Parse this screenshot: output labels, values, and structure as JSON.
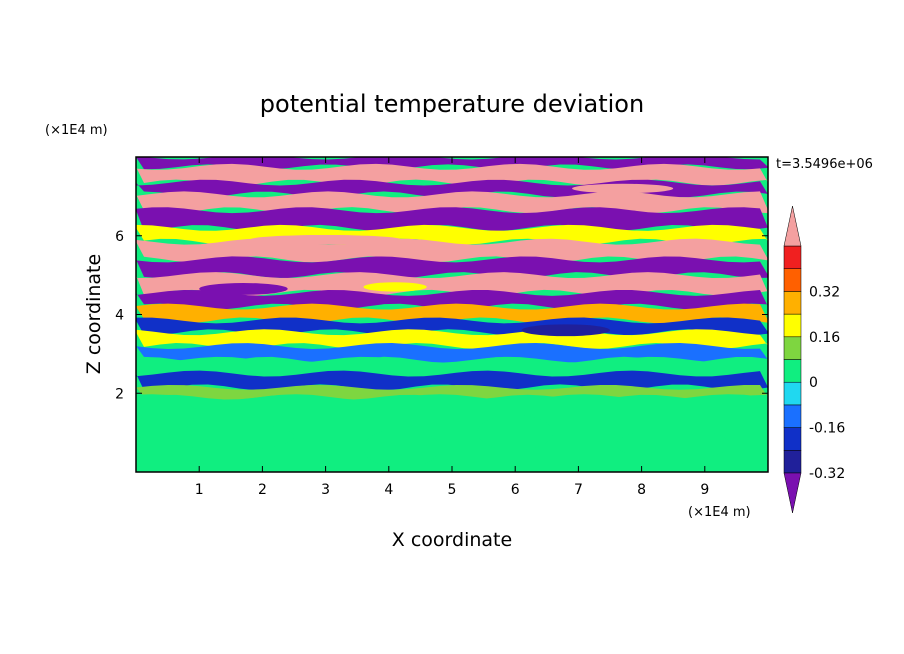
{
  "chart_data": {
    "type": "heatmap",
    "title": "potential temperature deviation",
    "xlabel": "X coordinate",
    "ylabel": "Z coordinate",
    "x_unit": "(×1E4 m)",
    "y_unit": "(×1E4 m)",
    "time_label": "t=3.5496e+06",
    "xlim": [
      0,
      10
    ],
    "ylim": [
      0,
      8
    ],
    "x_ticks": [
      "1",
      "2",
      "3",
      "4",
      "5",
      "6",
      "7",
      "8",
      "9"
    ],
    "y_ticks": [
      "2",
      "4",
      "6"
    ],
    "colorbar": {
      "labels": [
        "0.32",
        "0.16",
        "0",
        "-0.16",
        "-0.32"
      ],
      "levels": [
        -0.4,
        -0.32,
        -0.24,
        -0.16,
        -0.08,
        0,
        0.08,
        0.16,
        0.24,
        0.32,
        0.4
      ],
      "colors": [
        "#7a10b0",
        "#20209a",
        "#1030c8",
        "#1a70ff",
        "#20d8f0",
        "#10ee80",
        "#7ed640",
        "#ffff00",
        "#ffb000",
        "#ff6000",
        "#f02020",
        "#f4a0a0"
      ],
      "overflow_high_color": "#f4a0a0",
      "overflow_low_color": "#7a10b0"
    },
    "bands": [
      {
        "z_from": 7.75,
        "z_to": 8.0,
        "value": -0.45
      },
      {
        "z_from": 7.35,
        "z_to": 7.75,
        "value": 0.45
      },
      {
        "z_from": 7.05,
        "z_to": 7.35,
        "value": -0.45
      },
      {
        "z_from": 6.65,
        "z_to": 7.05,
        "value": 0.45
      },
      {
        "z_from": 6.2,
        "z_to": 6.65,
        "value": -0.45
      },
      {
        "z_from": 5.85,
        "z_to": 6.2,
        "value": 0.2
      },
      {
        "z_from": 5.4,
        "z_to": 5.85,
        "value": 0.45
      },
      {
        "z_from": 5.0,
        "z_to": 5.4,
        "value": -0.45
      },
      {
        "z_from": 4.55,
        "z_to": 5.0,
        "value": 0.45
      },
      {
        "z_from": 4.2,
        "z_to": 4.55,
        "value": -0.45
      },
      {
        "z_from": 3.85,
        "z_to": 4.2,
        "value": 0.3
      },
      {
        "z_from": 3.55,
        "z_to": 3.85,
        "value": -0.2
      },
      {
        "z_from": 3.2,
        "z_to": 3.55,
        "value": 0.2
      },
      {
        "z_from": 2.85,
        "z_to": 3.2,
        "value": -0.1
      },
      {
        "z_from": 2.5,
        "z_to": 2.85,
        "value": 0.05
      },
      {
        "z_from": 2.15,
        "z_to": 2.5,
        "value": -0.2
      },
      {
        "z_from": 1.9,
        "z_to": 2.15,
        "value": 0.1
      },
      {
        "z_from": 0.0,
        "z_to": 1.9,
        "value": 0.02
      }
    ],
    "patches": [
      {
        "x": 1.5,
        "z": 0.9,
        "rx": 1.0,
        "rz": 0.35,
        "value": 0.06
      },
      {
        "x": 4.2,
        "z": 0.6,
        "rx": 0.6,
        "rz": 0.5,
        "value": 0.06
      },
      {
        "x": 6.0,
        "z": 1.0,
        "rx": 0.6,
        "rz": 0.45,
        "value": 0.06
      },
      {
        "x": 8.5,
        "z": 0.7,
        "rx": 0.9,
        "rz": 0.4,
        "value": 0.06
      },
      {
        "x": 0.5,
        "z": 1.5,
        "rx": 0.5,
        "rz": 0.25,
        "value": 0.06
      },
      {
        "x": 1.7,
        "z": 4.65,
        "rx": 0.7,
        "rz": 0.15,
        "value": -0.45
      },
      {
        "x": 4.1,
        "z": 4.7,
        "rx": 0.5,
        "rz": 0.12,
        "value": 0.2
      },
      {
        "x": 3.0,
        "z": 5.9,
        "rx": 1.2,
        "rz": 0.12,
        "value": 0.4
      },
      {
        "x": 6.8,
        "z": 3.6,
        "rx": 0.7,
        "rz": 0.15,
        "value": -0.3
      },
      {
        "x": 7.7,
        "z": 7.2,
        "rx": 0.8,
        "rz": 0.12,
        "value": 0.45
      }
    ]
  }
}
